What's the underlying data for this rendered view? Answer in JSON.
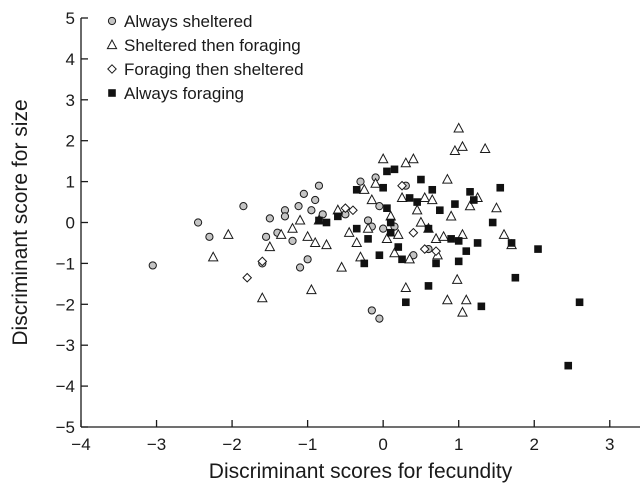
{
  "chart_data": {
    "type": "scatter",
    "xlabel": "Discriminant scores for fecundity",
    "ylabel": "Discriminant score for size",
    "xlim": [
      -4,
      3.4
    ],
    "ylim": [
      -5,
      5
    ],
    "xticks": [
      -4,
      -3,
      -2,
      -1,
      0,
      1,
      2,
      3
    ],
    "yticks": [
      -5,
      -4,
      -3,
      -2,
      -1,
      0,
      1,
      2,
      3,
      4,
      5
    ],
    "grid": false,
    "legend_position": "top-left",
    "series": [
      {
        "name": "Always sheltered",
        "marker": "circle-open",
        "points": [
          [
            -3.05,
            -1.05
          ],
          [
            -2.45,
            0.0
          ],
          [
            -2.3,
            -0.35
          ],
          [
            -1.85,
            0.4
          ],
          [
            -1.6,
            -1.0
          ],
          [
            -1.55,
            -0.35
          ],
          [
            -1.5,
            0.1
          ],
          [
            -1.4,
            -0.25
          ],
          [
            -1.3,
            0.3
          ],
          [
            -1.3,
            0.15
          ],
          [
            -1.2,
            -0.45
          ],
          [
            -1.12,
            0.4
          ],
          [
            -1.1,
            -1.1
          ],
          [
            -1.05,
            0.7
          ],
          [
            -1.0,
            -0.9
          ],
          [
            -0.95,
            0.3
          ],
          [
            -0.9,
            0.55
          ],
          [
            -0.85,
            0.9
          ],
          [
            -0.8,
            0.2
          ],
          [
            -0.5,
            0.2
          ],
          [
            -0.3,
            1.0
          ],
          [
            -0.2,
            0.05
          ],
          [
            -0.15,
            -0.1
          ],
          [
            -0.15,
            -2.15
          ],
          [
            -0.1,
            1.1
          ],
          [
            -0.05,
            -2.35
          ],
          [
            0.0,
            -0.15
          ],
          [
            -0.05,
            0.4
          ],
          [
            0.15,
            -0.1
          ],
          [
            0.3,
            0.9
          ],
          [
            0.4,
            -0.8
          ],
          [
            0.6,
            -0.65
          ]
        ]
      },
      {
        "name": "Sheltered then foraging",
        "marker": "triangle-open",
        "points": [
          [
            -2.25,
            -0.85
          ],
          [
            -2.05,
            -0.3
          ],
          [
            -1.6,
            -1.85
          ],
          [
            -1.5,
            -0.6
          ],
          [
            -1.35,
            -0.3
          ],
          [
            -1.2,
            -0.15
          ],
          [
            -1.1,
            0.05
          ],
          [
            -1.0,
            -0.35
          ],
          [
            -0.95,
            -1.65
          ],
          [
            -0.9,
            -0.5
          ],
          [
            -0.85,
            0.05
          ],
          [
            -0.75,
            -0.55
          ],
          [
            -0.6,
            0.3
          ],
          [
            -0.55,
            -1.1
          ],
          [
            -0.45,
            -0.25
          ],
          [
            -0.35,
            -0.5
          ],
          [
            -0.25,
            0.8
          ],
          [
            -0.3,
            -0.85
          ],
          [
            -0.2,
            -0.15
          ],
          [
            -0.15,
            0.55
          ],
          [
            -0.1,
            0.95
          ],
          [
            0.0,
            1.55
          ],
          [
            0.05,
            -0.4
          ],
          [
            0.1,
            0.15
          ],
          [
            0.15,
            -0.75
          ],
          [
            0.2,
            -0.3
          ],
          [
            0.25,
            0.6
          ],
          [
            0.3,
            1.45
          ],
          [
            0.3,
            -1.6
          ],
          [
            0.35,
            -0.9
          ],
          [
            0.4,
            1.55
          ],
          [
            0.45,
            0.3
          ],
          [
            0.5,
            0.0
          ],
          [
            0.55,
            0.6
          ],
          [
            0.6,
            -0.15
          ],
          [
            0.65,
            0.55
          ],
          [
            0.7,
            -0.4
          ],
          [
            0.72,
            -0.8
          ],
          [
            0.8,
            -0.35
          ],
          [
            0.85,
            1.05
          ],
          [
            0.85,
            -1.9
          ],
          [
            0.9,
            0.15
          ],
          [
            0.95,
            1.75
          ],
          [
            0.98,
            -1.4
          ],
          [
            1.0,
            2.3
          ],
          [
            1.05,
            1.85
          ],
          [
            1.05,
            -0.3
          ],
          [
            1.05,
            -2.2
          ],
          [
            1.1,
            -1.9
          ],
          [
            1.15,
            0.4
          ],
          [
            1.25,
            0.6
          ],
          [
            1.35,
            1.8
          ],
          [
            1.5,
            0.35
          ],
          [
            1.6,
            -0.3
          ],
          [
            1.7,
            -0.55
          ]
        ]
      },
      {
        "name": "Foraging then sheltered",
        "marker": "diamond-open",
        "points": [
          [
            -1.8,
            -1.35
          ],
          [
            -1.6,
            -0.95
          ],
          [
            -0.5,
            0.35
          ],
          [
            -0.4,
            0.3
          ],
          [
            0.25,
            0.9
          ],
          [
            0.4,
            -0.25
          ],
          [
            0.55,
            -0.65
          ],
          [
            0.7,
            -0.7
          ]
        ]
      },
      {
        "name": "Always foraging",
        "marker": "square-filled",
        "points": [
          [
            -0.85,
            0.05
          ],
          [
            -0.75,
            0.0
          ],
          [
            -0.6,
            0.15
          ],
          [
            -0.35,
            0.8
          ],
          [
            -0.35,
            -0.15
          ],
          [
            -0.25,
            -1.0
          ],
          [
            -0.2,
            -0.4
          ],
          [
            -0.05,
            -0.8
          ],
          [
            0.0,
            0.85
          ],
          [
            0.05,
            1.25
          ],
          [
            0.05,
            0.35
          ],
          [
            0.1,
            0.0
          ],
          [
            0.1,
            -0.25
          ],
          [
            0.15,
            1.3
          ],
          [
            0.2,
            -0.6
          ],
          [
            0.25,
            -0.9
          ],
          [
            0.3,
            -1.95
          ],
          [
            0.35,
            0.6
          ],
          [
            0.45,
            0.5
          ],
          [
            0.5,
            1.05
          ],
          [
            0.6,
            -0.15
          ],
          [
            0.65,
            0.8
          ],
          [
            0.6,
            -1.55
          ],
          [
            0.7,
            -1.0
          ],
          [
            0.75,
            0.3
          ],
          [
            0.9,
            -0.4
          ],
          [
            0.95,
            0.45
          ],
          [
            1.0,
            -0.45
          ],
          [
            1.0,
            -0.95
          ],
          [
            1.1,
            -0.7
          ],
          [
            1.15,
            0.75
          ],
          [
            1.2,
            0.55
          ],
          [
            1.25,
            -0.5
          ],
          [
            1.3,
            -2.05
          ],
          [
            1.45,
            0.0
          ],
          [
            1.55,
            0.85
          ],
          [
            1.7,
            -0.5
          ],
          [
            1.75,
            -1.35
          ],
          [
            2.05,
            -0.65
          ],
          [
            2.45,
            -3.5
          ],
          [
            2.6,
            -1.95
          ]
        ]
      }
    ]
  }
}
